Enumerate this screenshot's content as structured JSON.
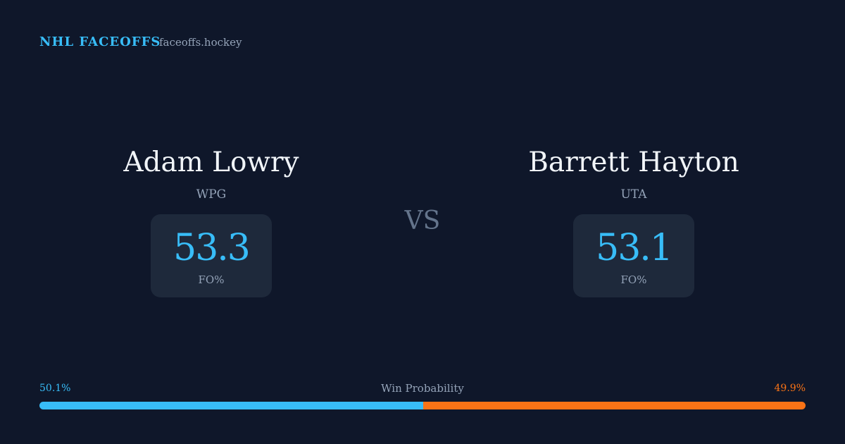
{
  "header": {
    "brand": "NHL FACEOFFS",
    "site": "faceoffs.hockey"
  },
  "players": [
    {
      "name": "Adam Lowry",
      "team": "WPG",
      "fo_value": 53.3,
      "fo_label": "FO%"
    },
    {
      "name": "Barrett Hayton",
      "team": "UTA",
      "fo_value": 53.1,
      "fo_label": "FO%"
    }
  ],
  "vs": "VS",
  "win_probability": {
    "title": "Win Probability",
    "values": [
      50.1,
      49.9
    ],
    "value_labels": [
      "50.1%",
      "49.9%"
    ],
    "colors": [
      "#38bdf8",
      "#f97316"
    ]
  }
}
